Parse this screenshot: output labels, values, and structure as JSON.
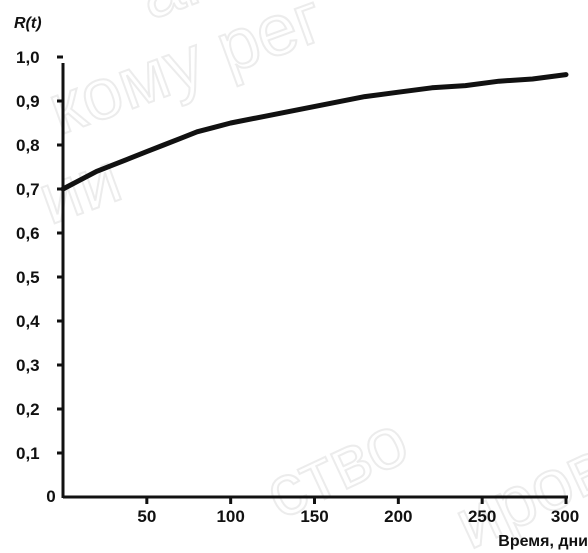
{
  "chart_data": {
    "type": "line",
    "ylabel": "R(t)",
    "xlabel": "Время, дни",
    "origin_label": "0",
    "xlim": [
      0,
      300
    ],
    "ylim": [
      0,
      1.0
    ],
    "x_tick_labels": [
      "50",
      "100",
      "150",
      "200",
      "250",
      "300"
    ],
    "y_tick_labels": [
      "0,1",
      "0,2",
      "0,3",
      "0,4",
      "0,5",
      "0,6",
      "0,7",
      "0,8",
      "0,9",
      "1,0"
    ],
    "grid": false,
    "series": [
      {
        "x": [
          0,
          10,
          20,
          30,
          40,
          50,
          60,
          70,
          80,
          90,
          100,
          120,
          140,
          160,
          180,
          200,
          220,
          240,
          260,
          280,
          300
        ],
        "y": [
          0.7,
          0.72,
          0.74,
          0.755,
          0.77,
          0.785,
          0.8,
          0.815,
          0.83,
          0.84,
          0.85,
          0.865,
          0.88,
          0.895,
          0.91,
          0.92,
          0.93,
          0.935,
          0.945,
          0.95,
          0.96
        ]
      }
    ]
  },
  "watermarks": [
    "анс",
    "кому рег",
    "ии",
    "ство",
    "ирова"
  ]
}
